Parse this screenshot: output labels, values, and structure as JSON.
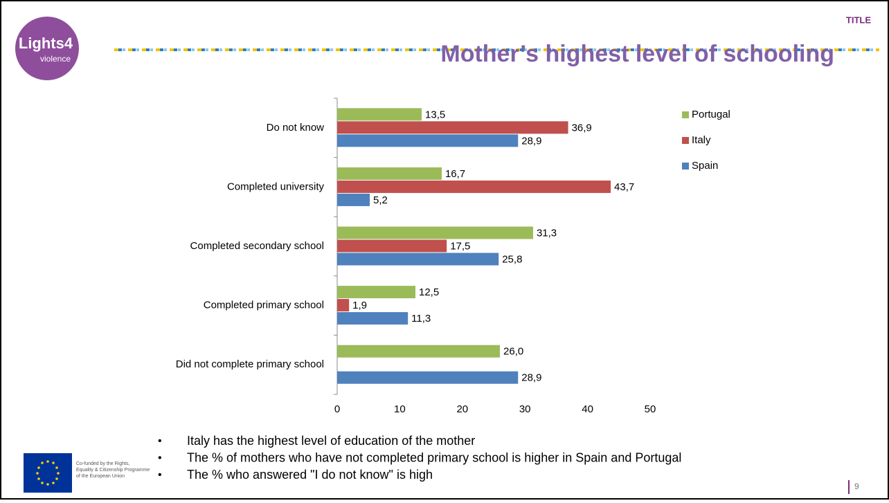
{
  "header": {
    "tag": "TITLE",
    "logo": [
      "Lights4",
      "violence"
    ]
  },
  "chart_data": {
    "type": "hbar",
    "title": "Mother’s highest level of schooling",
    "categories": [
      "Do not know",
      "Completed university",
      "Completed secondary school",
      "Completed primary school",
      "Did not complete primary school"
    ],
    "series": [
      {
        "name": "Portugal",
        "color": "#9bbb59",
        "values": [
          13.5,
          16.7,
          31.3,
          12.5,
          26.0
        ],
        "value_labels": [
          "13,5",
          "16,7",
          "31,3",
          "12,5",
          "26,0"
        ]
      },
      {
        "name": "Italy",
        "color": "#c0504d",
        "values": [
          36.9,
          43.7,
          17.5,
          1.9,
          null
        ],
        "value_labels": [
          "36,9",
          "43,7",
          "17,5",
          "1,9",
          null
        ]
      },
      {
        "name": "Spain",
        "color": "#4f81bd",
        "values": [
          28.9,
          5.2,
          25.8,
          11.3,
          28.9
        ],
        "value_labels": [
          "28,9",
          "5,2",
          "25,8",
          "11,3",
          "28,9"
        ]
      }
    ],
    "xlim": [
      0,
      50
    ],
    "xticks": [
      0,
      10,
      20,
      30,
      40,
      50
    ],
    "legend": "right"
  },
  "bullets": [
    "Italy has the highest level of education of the mother",
    "The % of mothers who have not completed primary school is higher in Spain and Portugal",
    "The % who answered \"I do not know\" is high"
  ],
  "footer": {
    "funding": [
      "Co-funded by the Rights,",
      "Equality & Citizenship Programme",
      "of the European Union"
    ],
    "page": "9"
  }
}
